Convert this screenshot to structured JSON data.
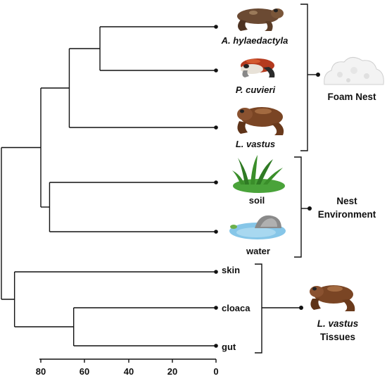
{
  "taxa": [
    {
      "label": "A. hylaedactyla",
      "italic": true
    },
    {
      "label": "P. cuvieri",
      "italic": true
    },
    {
      "label": "L. vastus",
      "italic": true
    },
    {
      "label": "soil",
      "italic": false
    },
    {
      "label": "water",
      "italic": false
    },
    {
      "label": "skin",
      "italic": false
    },
    {
      "label": "cloaca",
      "italic": false
    },
    {
      "label": "gut",
      "italic": false
    }
  ],
  "groups": {
    "foam_nest": "Foam Nest",
    "nest_environment_line1": "Nest",
    "nest_environment_line2": "Environment",
    "tissues_line1": "L. vastus",
    "tissues_line2": "Tissues"
  },
  "axis": {
    "ticks": [
      "80",
      "60",
      "40",
      "20",
      "0"
    ],
    "range": [
      80,
      0
    ]
  },
  "tree": {
    "internal_node_heights": {
      "ahyl_pcuv": 53,
      "frogs": 67,
      "soil_water": 76,
      "foam_env": 80,
      "cloaca_gut": 65,
      "tissues": 92,
      "root": 98
    }
  },
  "icons": [
    "frog-icon",
    "red-frog-icon",
    "frog-icon",
    "grass-icon",
    "pond-icon",
    "foam-nest-icon",
    "frog-icon"
  ],
  "colors": {
    "line": "#111111",
    "frog_brown": "#6b3f22",
    "grass_green": "#3f9a2c",
    "water_blue": "#7fc3e6",
    "foam_white": "#f4f4f4"
  }
}
